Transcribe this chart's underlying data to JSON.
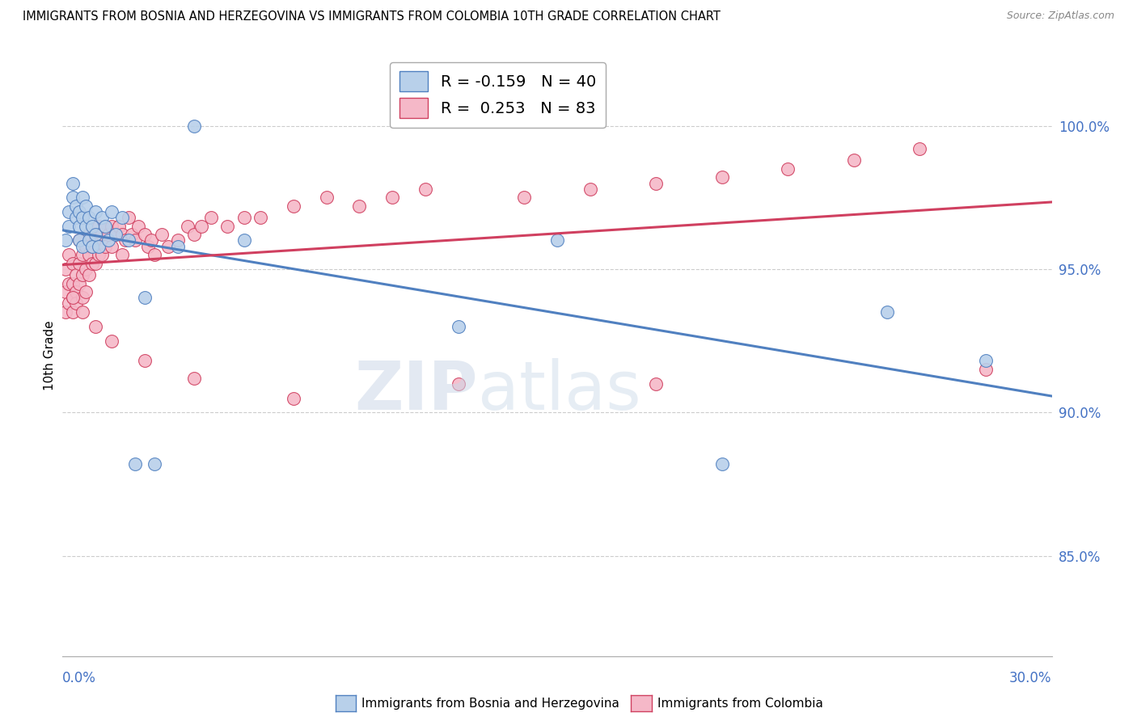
{
  "title": "IMMIGRANTS FROM BOSNIA AND HERZEGOVINA VS IMMIGRANTS FROM COLOMBIA 10TH GRADE CORRELATION CHART",
  "source": "Source: ZipAtlas.com",
  "ylabel": "10th Grade",
  "xlim": [
    0.0,
    0.3
  ],
  "ylim": [
    0.815,
    1.025
  ],
  "bosnia_R": -0.159,
  "bosnia_N": 40,
  "colombia_R": 0.253,
  "colombia_N": 83,
  "bosnia_color": "#b8d0ea",
  "colombia_color": "#f5b8c8",
  "bosnia_line_color": "#5080c0",
  "colombia_line_color": "#d04060",
  "right_ytick_vals": [
    1.0,
    0.95,
    0.9,
    0.85
  ],
  "right_ytick_labels": [
    "100.0%",
    "95.0%",
    "90.0%",
    "85.0%"
  ],
  "bosnia_x": [
    0.001,
    0.002,
    0.002,
    0.003,
    0.003,
    0.004,
    0.004,
    0.005,
    0.005,
    0.005,
    0.006,
    0.006,
    0.006,
    0.007,
    0.007,
    0.008,
    0.008,
    0.009,
    0.009,
    0.01,
    0.01,
    0.011,
    0.012,
    0.013,
    0.014,
    0.015,
    0.016,
    0.018,
    0.02,
    0.022,
    0.025,
    0.028,
    0.035,
    0.04,
    0.055,
    0.12,
    0.15,
    0.2,
    0.25,
    0.28
  ],
  "bosnia_y": [
    0.96,
    0.97,
    0.965,
    0.975,
    0.98,
    0.968,
    0.972,
    0.96,
    0.965,
    0.97,
    0.975,
    0.968,
    0.958,
    0.972,
    0.965,
    0.968,
    0.96,
    0.965,
    0.958,
    0.97,
    0.962,
    0.958,
    0.968,
    0.965,
    0.96,
    0.97,
    0.962,
    0.968,
    0.96,
    0.882,
    0.94,
    0.882,
    0.958,
    1.0,
    0.96,
    0.93,
    0.96,
    0.882,
    0.935,
    0.918
  ],
  "colombia_x": [
    0.001,
    0.001,
    0.001,
    0.002,
    0.002,
    0.002,
    0.003,
    0.003,
    0.003,
    0.003,
    0.004,
    0.004,
    0.004,
    0.005,
    0.005,
    0.005,
    0.006,
    0.006,
    0.006,
    0.007,
    0.007,
    0.007,
    0.008,
    0.008,
    0.008,
    0.009,
    0.009,
    0.01,
    0.01,
    0.011,
    0.011,
    0.012,
    0.012,
    0.013,
    0.013,
    0.014,
    0.015,
    0.015,
    0.016,
    0.017,
    0.018,
    0.018,
    0.019,
    0.02,
    0.021,
    0.022,
    0.023,
    0.025,
    0.026,
    0.027,
    0.028,
    0.03,
    0.032,
    0.035,
    0.038,
    0.04,
    0.042,
    0.045,
    0.05,
    0.055,
    0.06,
    0.07,
    0.08,
    0.09,
    0.1,
    0.11,
    0.14,
    0.16,
    0.18,
    0.2,
    0.22,
    0.24,
    0.26,
    0.003,
    0.006,
    0.01,
    0.015,
    0.025,
    0.04,
    0.07,
    0.12,
    0.18,
    0.28
  ],
  "colombia_y": [
    0.95,
    0.942,
    0.935,
    0.955,
    0.945,
    0.938,
    0.952,
    0.945,
    0.94,
    0.935,
    0.948,
    0.942,
    0.938,
    0.96,
    0.952,
    0.945,
    0.955,
    0.948,
    0.94,
    0.958,
    0.95,
    0.942,
    0.962,
    0.955,
    0.948,
    0.958,
    0.952,
    0.96,
    0.952,
    0.965,
    0.955,
    0.962,
    0.955,
    0.965,
    0.958,
    0.962,
    0.965,
    0.958,
    0.962,
    0.965,
    0.962,
    0.955,
    0.96,
    0.968,
    0.962,
    0.96,
    0.965,
    0.962,
    0.958,
    0.96,
    0.955,
    0.962,
    0.958,
    0.96,
    0.965,
    0.962,
    0.965,
    0.968,
    0.965,
    0.968,
    0.968,
    0.972,
    0.975,
    0.972,
    0.975,
    0.978,
    0.975,
    0.978,
    0.98,
    0.982,
    0.985,
    0.988,
    0.992,
    0.94,
    0.935,
    0.93,
    0.925,
    0.918,
    0.912,
    0.905,
    0.91,
    0.91,
    0.915
  ]
}
